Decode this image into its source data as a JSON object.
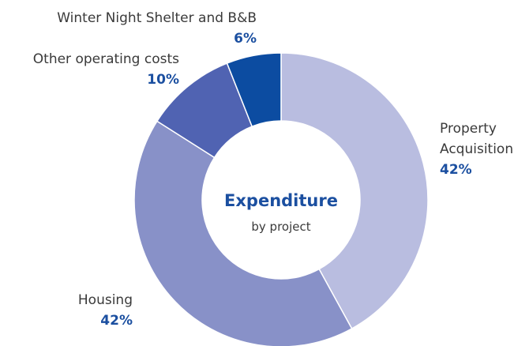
{
  "chart_data": {
    "type": "donut",
    "center_title": "Expenditure",
    "center_subtitle": "by project",
    "categories": [
      "Property Acquisition",
      "Housing",
      "Other operating costs",
      "Winter Night Shelter and B&B"
    ],
    "values": [
      42,
      42,
      10,
      6
    ],
    "value_labels": [
      "42%",
      "42%",
      "10%",
      "6%"
    ],
    "colors": [
      "#b9bde0",
      "#8891c8",
      "#5063b2",
      "#0c4ca1"
    ]
  }
}
